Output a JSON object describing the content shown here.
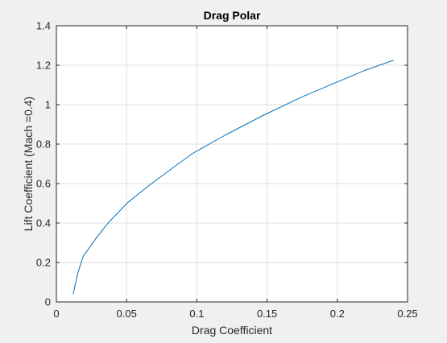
{
  "chart_data": {
    "type": "line",
    "title": "Drag Polar",
    "xlabel": "Drag Coefficient",
    "ylabel": "Lift Coefficient (Mach =0.4)",
    "xlim": [
      0,
      0.25
    ],
    "ylim": [
      0,
      1.4
    ],
    "xticks": [
      0,
      0.05,
      0.1,
      0.15,
      0.2,
      0.25
    ],
    "xtick_labels": [
      "0",
      "0.05",
      "0.1",
      "0.15",
      "0.2",
      "0.25"
    ],
    "yticks": [
      0,
      0.2,
      0.4,
      0.6,
      0.8,
      1.0,
      1.2,
      1.4
    ],
    "ytick_labels": [
      "0",
      "0.2",
      "0.4",
      "0.6",
      "0.8",
      "1",
      "1.2",
      "1.4"
    ],
    "grid": true,
    "colors": {
      "line": "#0072bd",
      "grid": "#dfdfdf",
      "axes": "#262626",
      "axes_bg": "#ffffff",
      "figure_bg": "#f0f0f0"
    },
    "series": [
      {
        "x": [
          0.012,
          0.0135,
          0.015,
          0.019,
          0.023,
          0.029,
          0.038,
          0.051,
          0.066,
          0.08,
          0.097,
          0.12,
          0.147,
          0.175,
          0.2,
          0.22,
          0.24
        ],
        "y": [
          0.04,
          0.09,
          0.14,
          0.23,
          0.27,
          0.33,
          0.41,
          0.505,
          0.59,
          0.665,
          0.753,
          0.845,
          0.945,
          1.04,
          1.115,
          1.175,
          1.225
        ]
      }
    ]
  }
}
